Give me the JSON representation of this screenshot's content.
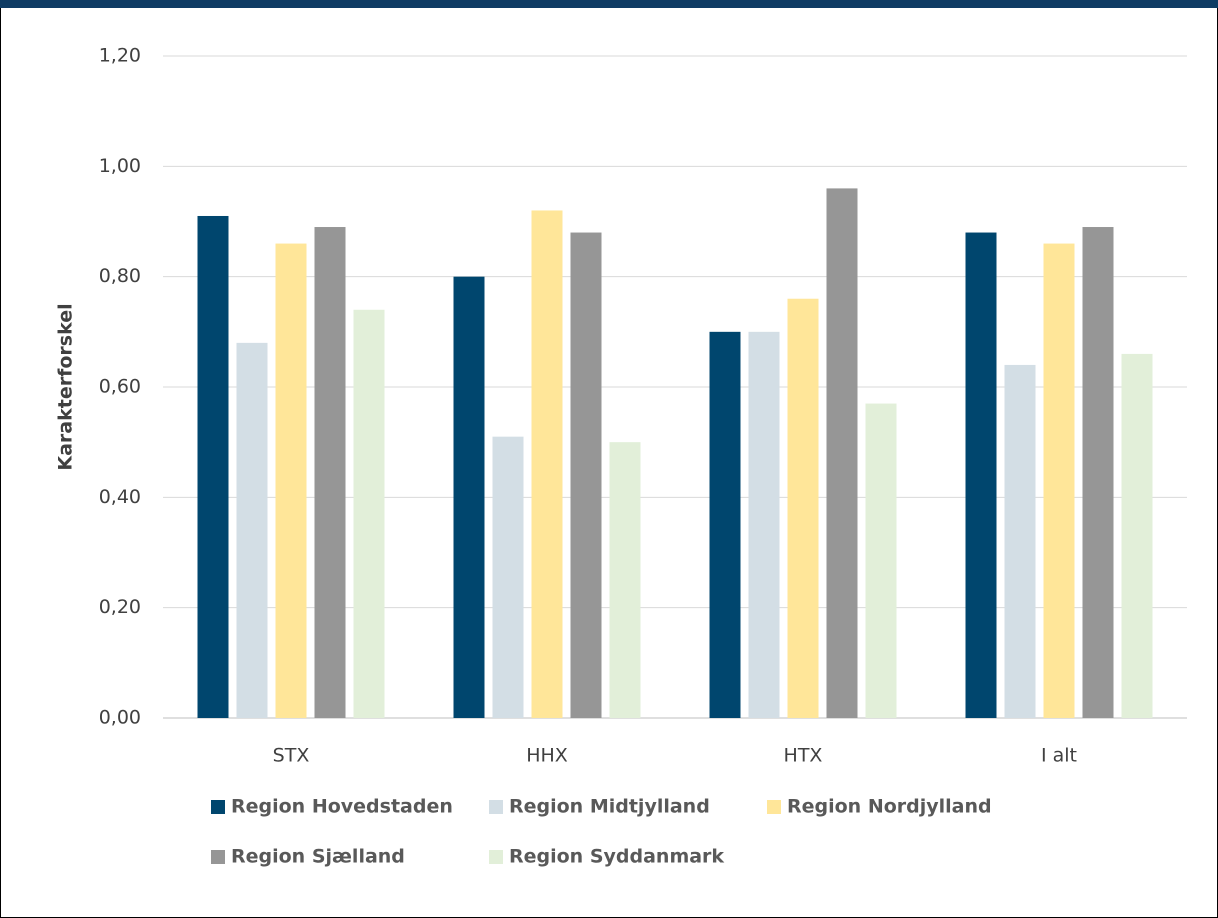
{
  "chart_data": {
    "type": "bar",
    "y_label": "Karakterforskel",
    "categories": [
      "STX",
      "HHX",
      "HTX",
      "I alt"
    ],
    "series": [
      {
        "name": "Region Hovedstaden",
        "color": "#00466e",
        "values": [
          0.91,
          0.8,
          0.7,
          0.88
        ]
      },
      {
        "name": "Region Midtjylland",
        "color": "#d3dee5",
        "values": [
          0.68,
          0.51,
          0.7,
          0.64
        ]
      },
      {
        "name": "Region Nordjylland",
        "color": "#ffe699",
        "values": [
          0.86,
          0.92,
          0.76,
          0.86
        ]
      },
      {
        "name": "Region Sjælland",
        "color": "#969696",
        "values": [
          0.89,
          0.88,
          0.96,
          0.89
        ]
      },
      {
        "name": "Region Syddanmark",
        "color": "#e2efd9",
        "values": [
          0.74,
          0.5,
          0.57,
          0.66
        ]
      }
    ],
    "ylim": [
      0,
      1.2
    ],
    "yticks": [
      {
        "value": 0,
        "label": "0,00"
      },
      {
        "value": 0.2,
        "label": "0,20"
      },
      {
        "value": 0.4,
        "label": "0,40"
      },
      {
        "value": 0.6,
        "label": "0,60"
      },
      {
        "value": 0.8,
        "label": "0,80"
      },
      {
        "value": 1.0,
        "label": "1,00"
      },
      {
        "value": 1.2,
        "label": "1,20"
      }
    ],
    "grid": true,
    "legend": "bottom"
  }
}
